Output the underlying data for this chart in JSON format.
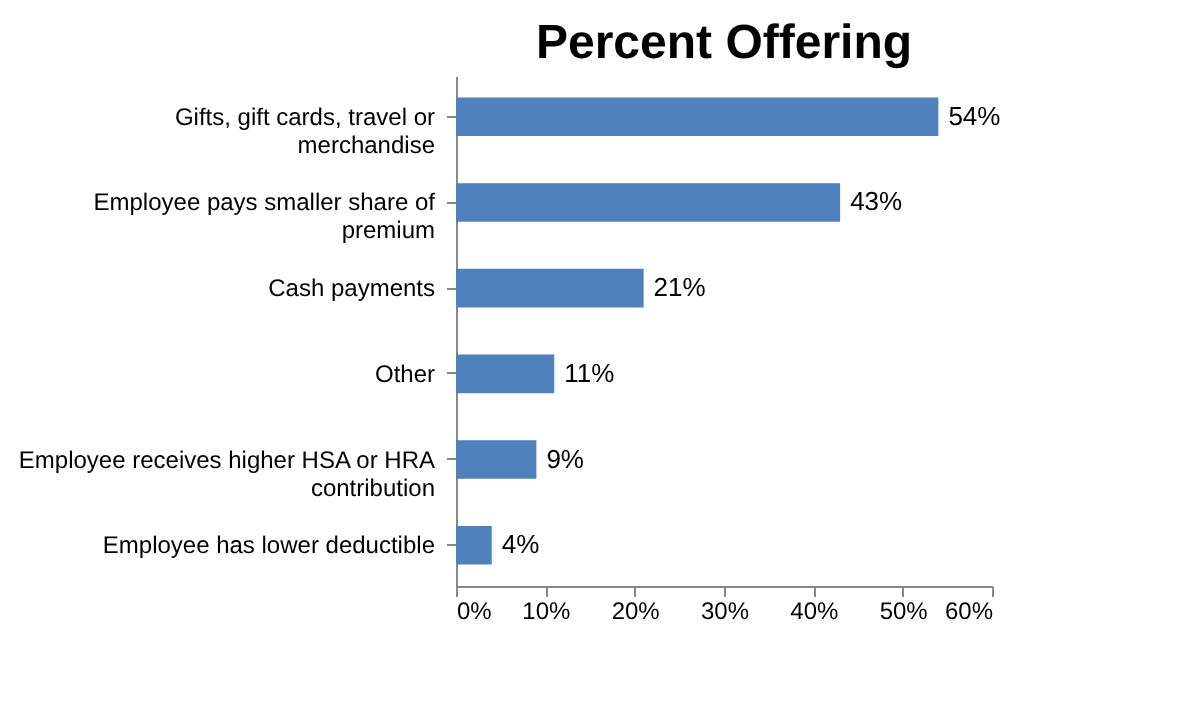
{
  "chart_data": {
    "type": "bar",
    "title": "Percent Offering",
    "orientation": "horizontal",
    "categories": [
      "Gifts, gift cards, travel or merchandise",
      "Employee pays smaller share of premium",
      "Cash payments",
      "Other",
      "Employee receives higher HSA or HRA contribution",
      "Employee has lower deductible"
    ],
    "values": [
      54,
      43,
      21,
      11,
      9,
      4
    ],
    "value_labels": [
      "54%",
      "43%",
      "21%",
      "11%",
      "9%",
      "4%"
    ],
    "color": "#4f81bd",
    "xlim": [
      0,
      60
    ],
    "xticks": [
      {
        "value": 0,
        "label": "0%"
      },
      {
        "value": 10,
        "label": "10%"
      },
      {
        "value": 20,
        "label": "20%"
      },
      {
        "value": 30,
        "label": "30%"
      },
      {
        "value": 40,
        "label": "40%"
      },
      {
        "value": 50,
        "label": "50%"
      },
      {
        "value": 60,
        "label": "60%"
      }
    ],
    "grid": false
  }
}
